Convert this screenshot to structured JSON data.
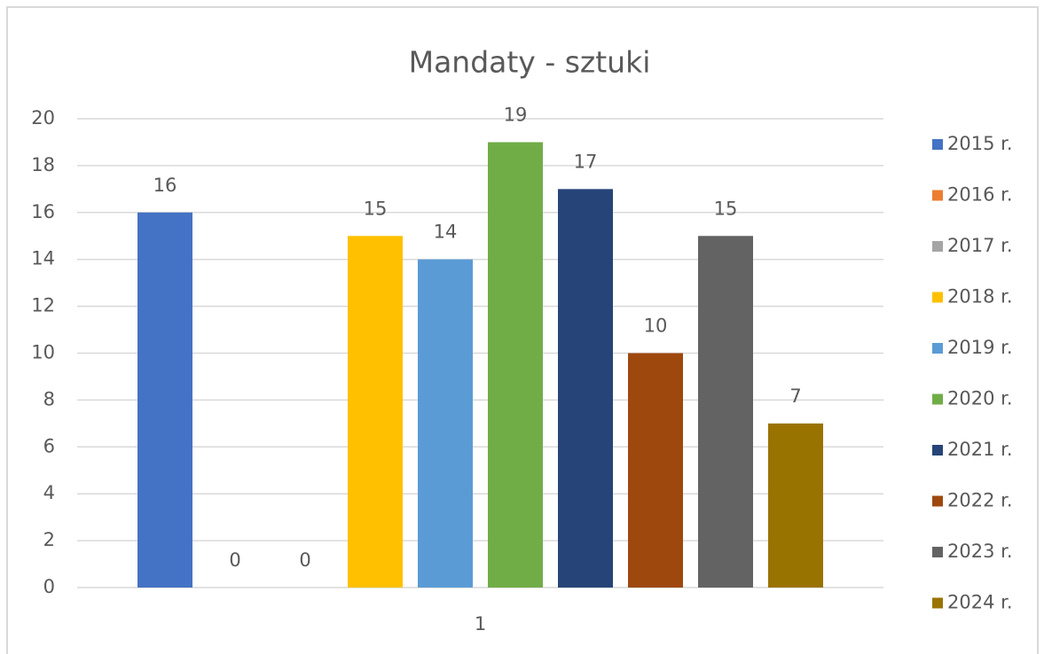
{
  "chart_data": {
    "type": "bar",
    "title": "Mandaty - sztuki",
    "categories": [
      "1"
    ],
    "series": [
      {
        "name": "2015 r.",
        "color": "#4472c4",
        "values": [
          16
        ]
      },
      {
        "name": "2016 r.",
        "color": "#ed7d31",
        "values": [
          0
        ]
      },
      {
        "name": "2017 r.",
        "color": "#a5a5a5",
        "values": [
          0
        ]
      },
      {
        "name": "2018 r.",
        "color": "#ffc000",
        "values": [
          15
        ]
      },
      {
        "name": "2019 r.",
        "color": "#5b9bd5",
        "values": [
          14
        ]
      },
      {
        "name": "2020 r.",
        "color": "#70ad47",
        "values": [
          19
        ]
      },
      {
        "name": "2021 r.",
        "color": "#264478",
        "values": [
          17
        ]
      },
      {
        "name": "2022 r.",
        "color": "#9e480e",
        "values": [
          10
        ]
      },
      {
        "name": "2023 r.",
        "color": "#636363",
        "values": [
          15
        ]
      },
      {
        "name": "2024 r.",
        "color": "#997300",
        "values": [
          7
        ]
      }
    ],
    "ylim": [
      0,
      20
    ],
    "yticks": [
      0,
      2,
      4,
      6,
      8,
      10,
      12,
      14,
      16,
      18,
      20
    ],
    "grid": true,
    "legend": "right",
    "data_labels": true
  }
}
